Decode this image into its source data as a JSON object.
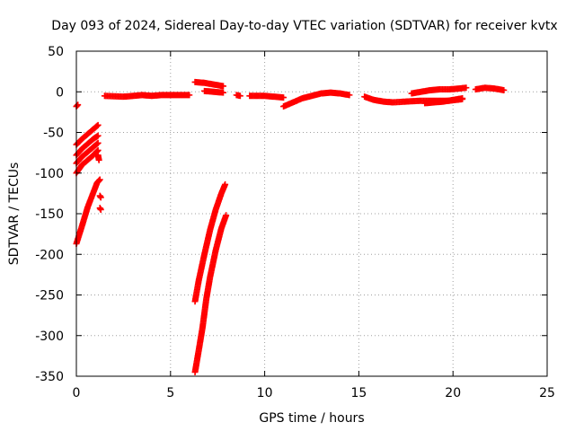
{
  "chart_data": {
    "type": "scatter",
    "title": "Day 093 of 2024, Sidereal Day-to-day VTEC variation (SDTVAR) for receiver kvtx",
    "xlabel": "GPS time / hours",
    "ylabel": "SDTVAR / TECUs",
    "xlim": [
      0,
      25
    ],
    "ylim": [
      -350,
      50
    ],
    "xticks": [
      0,
      5,
      10,
      15,
      20,
      25
    ],
    "yticks": [
      -350,
      -300,
      -250,
      -200,
      -150,
      -100,
      -50,
      0,
      50
    ],
    "grid": true,
    "marker": "plus",
    "color": "#ff0000",
    "series": [
      {
        "segments": [
          [
            [
              0.0,
              -18
            ],
            [
              0.08,
              -16
            ]
          ],
          [
            [
              0.0,
              -65
            ],
            [
              0.3,
              -58
            ],
            [
              0.6,
              -52
            ],
            [
              0.9,
              -46
            ],
            [
              1.15,
              -41
            ]
          ],
          [
            [
              0.0,
              -78
            ],
            [
              0.3,
              -70
            ],
            [
              0.6,
              -64
            ],
            [
              0.9,
              -58
            ],
            [
              1.15,
              -54
            ]
          ],
          [
            [
              0.0,
              -88
            ],
            [
              0.3,
              -80
            ],
            [
              0.6,
              -74
            ],
            [
              0.9,
              -68
            ],
            [
              1.15,
              -63
            ]
          ],
          [
            [
              0.0,
              -100
            ],
            [
              0.3,
              -90
            ],
            [
              0.6,
              -84
            ],
            [
              0.9,
              -78
            ],
            [
              1.15,
              -72
            ]
          ],
          [
            [
              1.15,
              -78
            ],
            [
              1.2,
              -84
            ]
          ],
          [
            [
              0.0,
              -187
            ],
            [
              0.3,
              -165
            ],
            [
              0.6,
              -142
            ],
            [
              0.9,
              -124
            ],
            [
              1.1,
              -112
            ],
            [
              1.25,
              -108
            ]
          ],
          [
            [
              1.25,
              -128
            ],
            [
              1.3,
              -130
            ]
          ],
          [
            [
              1.25,
              -143
            ],
            [
              1.3,
              -145
            ]
          ],
          [
            [
              1.5,
              -5
            ],
            [
              2.5,
              -6
            ],
            [
              3.5,
              -4
            ],
            [
              4.0,
              -5
            ],
            [
              4.5,
              -4
            ],
            [
              5.5,
              -4
            ],
            [
              6.0,
              -4
            ]
          ],
          [
            [
              6.3,
              12
            ],
            [
              6.8,
              11
            ],
            [
              7.3,
              9
            ],
            [
              7.8,
              7
            ]
          ],
          [
            [
              6.8,
              1
            ],
            [
              7.3,
              0
            ],
            [
              7.8,
              -1
            ]
          ],
          [
            [
              8.5,
              -4
            ],
            [
              8.7,
              -5
            ]
          ],
          [
            [
              9.2,
              -5
            ],
            [
              10.0,
              -5
            ],
            [
              10.5,
              -6
            ],
            [
              11.0,
              -7
            ]
          ],
          [
            [
              11.0,
              -18
            ],
            [
              11.5,
              -13
            ],
            [
              12.0,
              -8
            ],
            [
              12.5,
              -5
            ],
            [
              13.0,
              -2
            ],
            [
              13.5,
              -1
            ],
            [
              14.0,
              -2
            ],
            [
              14.5,
              -4
            ]
          ],
          [
            [
              15.3,
              -6
            ],
            [
              15.8,
              -10
            ],
            [
              16.3,
              -12
            ],
            [
              16.8,
              -13
            ],
            [
              17.5,
              -12
            ],
            [
              18.3,
              -11
            ],
            [
              19.0,
              -11
            ],
            [
              19.8,
              -11
            ],
            [
              20.5,
              -9
            ]
          ],
          [
            [
              17.8,
              -2
            ],
            [
              18.3,
              0
            ],
            [
              18.8,
              2
            ],
            [
              19.3,
              3
            ],
            [
              19.8,
              3
            ],
            [
              20.3,
              4
            ],
            [
              20.7,
              5
            ]
          ],
          [
            [
              18.5,
              -14
            ],
            [
              19.0,
              -13
            ],
            [
              19.5,
              -12
            ],
            [
              20.0,
              -10
            ],
            [
              20.5,
              -8
            ]
          ],
          [
            [
              21.2,
              3
            ],
            [
              21.7,
              5
            ],
            [
              22.2,
              4
            ],
            [
              22.7,
              2
            ]
          ],
          [
            [
              6.3,
              -258
            ],
            [
              6.5,
              -232
            ],
            [
              6.8,
              -200
            ],
            [
              7.1,
              -170
            ],
            [
              7.4,
              -145
            ],
            [
              7.7,
              -125
            ],
            [
              7.9,
              -114
            ]
          ],
          [
            [
              6.3,
              -345
            ],
            [
              6.5,
              -318
            ],
            [
              6.7,
              -290
            ],
            [
              6.9,
              -255
            ],
            [
              7.1,
              -228
            ],
            [
              7.4,
              -195
            ],
            [
              7.7,
              -168
            ],
            [
              7.95,
              -152
            ]
          ]
        ]
      }
    ]
  }
}
